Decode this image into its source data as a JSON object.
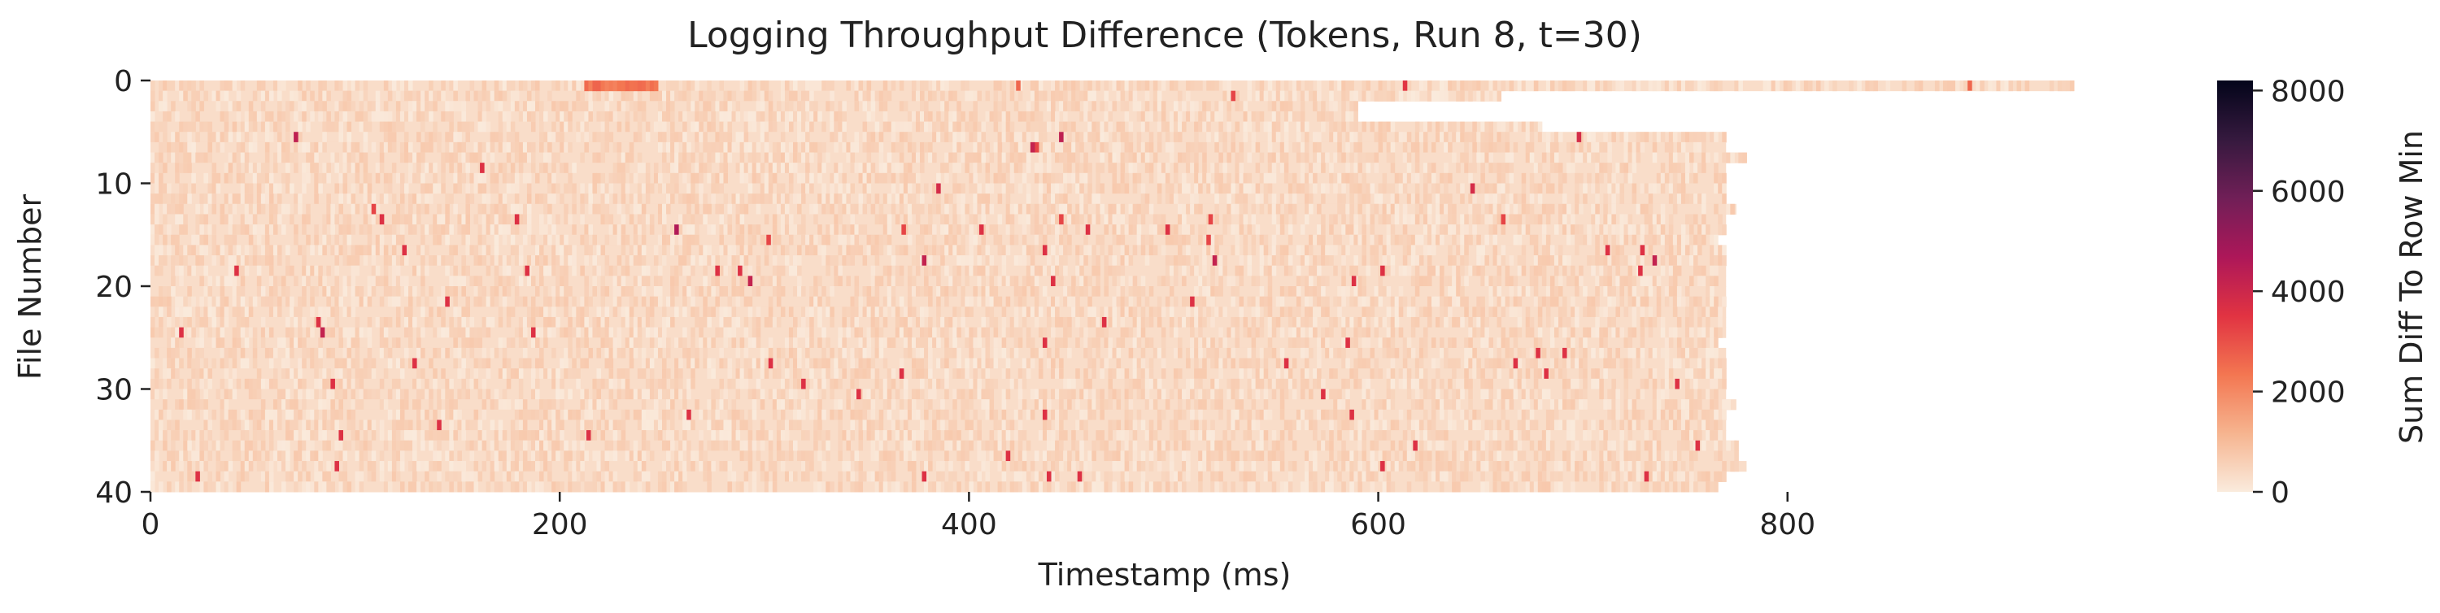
{
  "chart_data": {
    "type": "heatmap",
    "title": "Logging Throughput Difference (Tokens, Run 8, t=30)",
    "xlabel": "Timestamp (ms)",
    "ylabel": "File Number",
    "colorbar_label": "Sum Diff To Row Min",
    "xlim": [
      0,
      940
    ],
    "ylim": [
      40,
      0
    ],
    "x_ticks": [
      0,
      200,
      400,
      600,
      800
    ],
    "x_tick_labels": [
      "0",
      "200",
      "400",
      "600",
      "800"
    ],
    "y_ticks": [
      0,
      10,
      20,
      30,
      40
    ],
    "y_tick_labels": [
      "0",
      "10",
      "20",
      "30",
      "40"
    ],
    "colorbar_range": [
      0,
      8200
    ],
    "colorbar_ticks": [
      0,
      2000,
      4000,
      6000,
      8000
    ],
    "colorbar_tick_labels": [
      "0",
      "2000",
      "4000",
      "6000",
      "8000"
    ],
    "colormap": "rocket_r",
    "colormap_stops": [
      "#faebdd",
      "#f6b48f",
      "#f37651",
      "#e13342",
      "#ad1759",
      "#701f57",
      "#35193e",
      "#03051a"
    ],
    "rows": 40,
    "row_end_ms": [
      940,
      660,
      590,
      590,
      680,
      770,
      770,
      780,
      770,
      770,
      770,
      770,
      775,
      770,
      770,
      765,
      770,
      770,
      770,
      770,
      770,
      770,
      770,
      770,
      770,
      765,
      770,
      770,
      770,
      770,
      770,
      775,
      770,
      770,
      770,
      775,
      775,
      780,
      770,
      765
    ],
    "base_level": 300,
    "hot_band": {
      "row": 0,
      "start_ms": 212,
      "end_ms": 248,
      "value": 2400
    },
    "hot_cells": [
      {
        "row": 0,
        "x": 423,
        "v": 2600
      },
      {
        "row": 0,
        "x": 612,
        "v": 3500
      },
      {
        "row": 0,
        "x": 888,
        "v": 2600
      },
      {
        "row": 1,
        "x": 528,
        "v": 3200
      },
      {
        "row": 5,
        "x": 70,
        "v": 4300
      },
      {
        "row": 5,
        "x": 444,
        "v": 4300
      },
      {
        "row": 5,
        "x": 697,
        "v": 3800
      },
      {
        "row": 6,
        "x": 432,
        "v": 3200
      },
      {
        "row": 6,
        "x": 430,
        "v": 4200
      },
      {
        "row": 8,
        "x": 161,
        "v": 3600
      },
      {
        "row": 10,
        "x": 384,
        "v": 3800
      },
      {
        "row": 10,
        "x": 645,
        "v": 3800
      },
      {
        "row": 12,
        "x": 108,
        "v": 3200
      },
      {
        "row": 13,
        "x": 444,
        "v": 3200
      },
      {
        "row": 13,
        "x": 517,
        "v": 3200
      },
      {
        "row": 13,
        "x": 660,
        "v": 3200
      },
      {
        "row": 13,
        "x": 112,
        "v": 3600
      },
      {
        "row": 13,
        "x": 178,
        "v": 3600
      },
      {
        "row": 14,
        "x": 256,
        "v": 4600
      },
      {
        "row": 14,
        "x": 367,
        "v": 3200
      },
      {
        "row": 14,
        "x": 405,
        "v": 3600
      },
      {
        "row": 14,
        "x": 457,
        "v": 3600
      },
      {
        "row": 14,
        "x": 496,
        "v": 3600
      },
      {
        "row": 15,
        "x": 301,
        "v": 3200
      },
      {
        "row": 15,
        "x": 516,
        "v": 3200
      },
      {
        "row": 16,
        "x": 123,
        "v": 3600
      },
      {
        "row": 16,
        "x": 436,
        "v": 3600
      },
      {
        "row": 16,
        "x": 711,
        "v": 3600
      },
      {
        "row": 16,
        "x": 728,
        "v": 3600
      },
      {
        "row": 17,
        "x": 377,
        "v": 4200
      },
      {
        "row": 17,
        "x": 519,
        "v": 4200
      },
      {
        "row": 17,
        "x": 734,
        "v": 4200
      },
      {
        "row": 18,
        "x": 41,
        "v": 3600
      },
      {
        "row": 18,
        "x": 183,
        "v": 3600
      },
      {
        "row": 18,
        "x": 276,
        "v": 3600
      },
      {
        "row": 18,
        "x": 287,
        "v": 3600
      },
      {
        "row": 18,
        "x": 601,
        "v": 3600
      },
      {
        "row": 18,
        "x": 727,
        "v": 3600
      },
      {
        "row": 19,
        "x": 292,
        "v": 4200
      },
      {
        "row": 19,
        "x": 440,
        "v": 3600
      },
      {
        "row": 19,
        "x": 587,
        "v": 3600
      },
      {
        "row": 21,
        "x": 144,
        "v": 3600
      },
      {
        "row": 21,
        "x": 508,
        "v": 3600
      },
      {
        "row": 23,
        "x": 81,
        "v": 3600
      },
      {
        "row": 23,
        "x": 465,
        "v": 3600
      },
      {
        "row": 24,
        "x": 14,
        "v": 3600
      },
      {
        "row": 24,
        "x": 83,
        "v": 4200
      },
      {
        "row": 24,
        "x": 186,
        "v": 3600
      },
      {
        "row": 25,
        "x": 436,
        "v": 3600
      },
      {
        "row": 25,
        "x": 584,
        "v": 3600
      },
      {
        "row": 26,
        "x": 677,
        "v": 3600
      },
      {
        "row": 26,
        "x": 690,
        "v": 3600
      },
      {
        "row": 27,
        "x": 128,
        "v": 3600
      },
      {
        "row": 27,
        "x": 302,
        "v": 3600
      },
      {
        "row": 27,
        "x": 554,
        "v": 3600
      },
      {
        "row": 27,
        "x": 666,
        "v": 3600
      },
      {
        "row": 28,
        "x": 681,
        "v": 3600
      },
      {
        "row": 28,
        "x": 366,
        "v": 3600
      },
      {
        "row": 29,
        "x": 88,
        "v": 3600
      },
      {
        "row": 29,
        "x": 318,
        "v": 3600
      },
      {
        "row": 29,
        "x": 745,
        "v": 3600
      },
      {
        "row": 30,
        "x": 345,
        "v": 3600
      },
      {
        "row": 30,
        "x": 572,
        "v": 3600
      },
      {
        "row": 32,
        "x": 262,
        "v": 3600
      },
      {
        "row": 32,
        "x": 436,
        "v": 3600
      },
      {
        "row": 32,
        "x": 586,
        "v": 3600
      },
      {
        "row": 33,
        "x": 140,
        "v": 3600
      },
      {
        "row": 34,
        "x": 213,
        "v": 3600
      },
      {
        "row": 34,
        "x": 92,
        "v": 3600
      },
      {
        "row": 35,
        "x": 617,
        "v": 3600
      },
      {
        "row": 35,
        "x": 755,
        "v": 3600
      },
      {
        "row": 36,
        "x": 418,
        "v": 3600
      },
      {
        "row": 37,
        "x": 90,
        "v": 3600
      },
      {
        "row": 37,
        "x": 601,
        "v": 3600
      },
      {
        "row": 38,
        "x": 22,
        "v": 3600
      },
      {
        "row": 38,
        "x": 377,
        "v": 3600
      },
      {
        "row": 38,
        "x": 438,
        "v": 3600
      },
      {
        "row": 38,
        "x": 730,
        "v": 3600
      },
      {
        "row": 38,
        "x": 453,
        "v": 3600
      }
    ]
  }
}
